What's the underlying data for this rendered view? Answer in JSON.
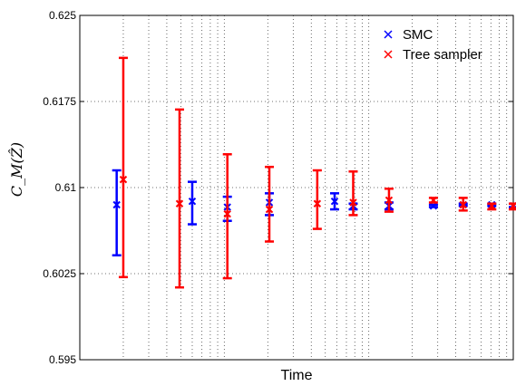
{
  "chart_data": {
    "type": "scatter",
    "title": "",
    "xlabel": "Time",
    "ylabel": "C_M(Ẑ)",
    "ylim": [
      0.595,
      0.625
    ],
    "yticks": [
      {
        "value": 0.595,
        "label": "0.595"
      },
      {
        "value": 0.6025,
        "label": "0.6025"
      },
      {
        "value": 0.61,
        "label": "0.61"
      },
      {
        "value": 0.6175,
        "label": "0.6175"
      },
      {
        "value": 0.625,
        "label": "0.625"
      }
    ],
    "xscale": "log",
    "xlim": [
      0.1,
      100
    ],
    "grid": true,
    "legend_position": "top-right",
    "series": [
      {
        "name": "SMC",
        "color": "#0000ff",
        "marker": "x",
        "points": [
          {
            "x": 0.18,
            "y": 0.6085,
            "low": 0.6041,
            "high": 0.6115
          },
          {
            "x": 0.6,
            "y": 0.6088,
            "low": 0.6068,
            "high": 0.6105
          },
          {
            "x": 1.05,
            "y": 0.6083,
            "low": 0.6071,
            "high": 0.6092
          },
          {
            "x": 2.05,
            "y": 0.6087,
            "low": 0.6076,
            "high": 0.6095
          },
          {
            "x": 5.8,
            "y": 0.6088,
            "low": 0.6081,
            "high": 0.6095
          },
          {
            "x": 7.8,
            "y": 0.6084,
            "low": 0.6081,
            "high": 0.6086
          },
          {
            "x": 13.8,
            "y": 0.6084,
            "low": 0.6081,
            "high": 0.6087
          },
          {
            "x": 28,
            "y": 0.6084,
            "low": 0.6083,
            "high": 0.6085
          },
          {
            "x": 45,
            "y": 0.6085,
            "low": 0.6084,
            "high": 0.6086
          },
          {
            "x": 71,
            "y": 0.6085,
            "low": 0.6084,
            "high": 0.6086
          },
          {
            "x": 100,
            "y": 0.6084,
            "low": 0.6083,
            "high": 0.6086
          }
        ]
      },
      {
        "name": "Tree sampler",
        "color": "#ff0000",
        "marker": "x",
        "points": [
          {
            "x": 0.2,
            "y": 0.6107,
            "low": 0.6022,
            "high": 0.6213
          },
          {
            "x": 0.49,
            "y": 0.6086,
            "low": 0.6013,
            "high": 0.6168
          },
          {
            "x": 1.05,
            "y": 0.6077,
            "low": 0.6021,
            "high": 0.6129
          },
          {
            "x": 2.05,
            "y": 0.6081,
            "low": 0.6053,
            "high": 0.6118
          },
          {
            "x": 4.4,
            "y": 0.6086,
            "low": 0.6064,
            "high": 0.6115
          },
          {
            "x": 7.8,
            "y": 0.6087,
            "low": 0.6076,
            "high": 0.6114
          },
          {
            "x": 13.8,
            "y": 0.6089,
            "low": 0.6079,
            "high": 0.6099
          },
          {
            "x": 28,
            "y": 0.6089,
            "low": 0.6087,
            "high": 0.6091
          },
          {
            "x": 45,
            "y": 0.6085,
            "low": 0.608,
            "high": 0.6091
          },
          {
            "x": 71,
            "y": 0.6084,
            "low": 0.6081,
            "high": 0.6086
          },
          {
            "x": 100,
            "y": 0.6084,
            "low": 0.6081,
            "high": 0.6086
          }
        ]
      }
    ]
  }
}
